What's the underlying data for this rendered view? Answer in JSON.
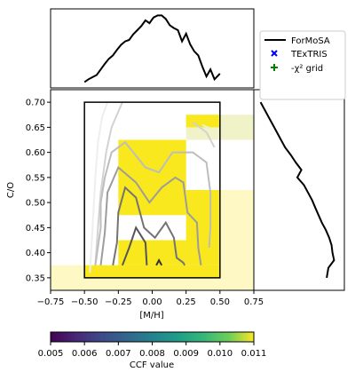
{
  "chart_data": {
    "type": "heatmap",
    "xlabel": "[M/H]",
    "ylabel": "C/O",
    "xlim": [
      -0.75,
      0.75
    ],
    "ylim": [
      0.325,
      0.725
    ],
    "x_ticks": [
      "−0.75",
      "−0.50",
      "−0.25",
      "0.00",
      "0.25",
      "0.50",
      "0.75"
    ],
    "y_ticks": [
      "0.35",
      "0.40",
      "0.45",
      "0.50",
      "0.55",
      "0.60",
      "0.65",
      "0.70"
    ],
    "x_tick_values": [
      -0.75,
      -0.5,
      -0.25,
      0.0,
      0.25,
      0.5,
      0.75
    ],
    "y_tick_values": [
      0.35,
      0.4,
      0.45,
      0.5,
      0.55,
      0.6,
      0.65,
      0.7
    ],
    "legend": {
      "position": "upper-right",
      "entries": [
        {
          "label": "ForMoSA",
          "marker": "line",
          "color": "#000000"
        },
        {
          "label": "TExTRIS",
          "marker": "x",
          "color": "#0000ff"
        },
        {
          "label": "-χ² grid",
          "marker": "+",
          "color": "#008000"
        }
      ]
    },
    "colorbar": {
      "label": "CCF value",
      "min": 0.005,
      "max": 0.011,
      "ticks": [
        "0.005",
        "0.006",
        "0.007",
        "0.008",
        "0.009",
        "0.010",
        "0.011"
      ],
      "colormap": "viridis"
    },
    "heatmap_cells": [
      {
        "x0": -0.75,
        "x1": 0.75,
        "y0": 0.325,
        "y1": 0.375,
        "color": "#fdf8c4"
      },
      {
        "x0": 0.5,
        "x1": 0.75,
        "y0": 0.375,
        "y1": 0.525,
        "color": "#fdf8c4"
      },
      {
        "x0": 0.25,
        "x1": 0.75,
        "y0": 0.625,
        "y1": 0.675,
        "color": "#f0f3c8"
      },
      {
        "x0": -0.5,
        "x1": 0.5,
        "y0": 0.35,
        "y1": 0.375,
        "color": "#f8e81d"
      },
      {
        "x0": -0.25,
        "x1": 0.5,
        "y0": 0.375,
        "y1": 0.425,
        "color": "#f8e81d"
      },
      {
        "x0": 0.25,
        "x1": 0.5,
        "y0": 0.425,
        "y1": 0.525,
        "color": "#f8e81d"
      },
      {
        "x0": -0.25,
        "x1": 0.25,
        "y0": 0.475,
        "y1": 0.625,
        "color": "#f8e81d"
      },
      {
        "x0": 0.25,
        "x1": 0.5,
        "y0": 0.65,
        "y1": 0.675,
        "color": "#f8e81d"
      }
    ],
    "grid_box": {
      "x": [
        -0.5,
        0.5
      ],
      "y": [
        0.35,
        0.7
      ]
    },
    "contours": [
      {
        "color": "#eeeeee",
        "points": [
          [
            -0.46,
            0.36
          ],
          [
            -0.44,
            0.45
          ],
          [
            -0.42,
            0.55
          ],
          [
            -0.4,
            0.62
          ],
          [
            -0.37,
            0.67
          ],
          [
            -0.33,
            0.7
          ]
        ]
      },
      {
        "color": "#d2d2d2",
        "points": [
          [
            -0.42,
            0.375
          ],
          [
            -0.4,
            0.45
          ],
          [
            -0.38,
            0.52
          ],
          [
            -0.34,
            0.6
          ],
          [
            -0.3,
            0.65
          ],
          [
            -0.22,
            0.7
          ]
        ]
      },
      {
        "color": "#d2d2d2",
        "points": [
          [
            0.3,
            0.66
          ],
          [
            0.4,
            0.64
          ],
          [
            0.46,
            0.61
          ]
        ]
      },
      {
        "color": "#bdbdbd",
        "points": [
          [
            -0.42,
            0.375
          ],
          [
            -0.38,
            0.45
          ],
          [
            -0.38,
            0.5
          ],
          [
            -0.35,
            0.55
          ],
          [
            -0.3,
            0.6
          ],
          [
            -0.2,
            0.62
          ],
          [
            -0.05,
            0.57
          ],
          [
            0.05,
            0.56
          ],
          [
            0.15,
            0.6
          ],
          [
            0.3,
            0.6
          ],
          [
            0.4,
            0.58
          ],
          [
            0.43,
            0.52
          ],
          [
            0.43,
            0.45
          ],
          [
            0.42,
            0.41
          ]
        ]
      },
      {
        "color": "#9c9c9c",
        "points": [
          [
            -0.38,
            0.375
          ],
          [
            -0.35,
            0.44
          ],
          [
            -0.33,
            0.52
          ],
          [
            -0.25,
            0.57
          ],
          [
            -0.12,
            0.54
          ],
          [
            -0.02,
            0.5
          ],
          [
            0.07,
            0.53
          ],
          [
            0.17,
            0.55
          ],
          [
            0.23,
            0.54
          ],
          [
            0.26,
            0.48
          ],
          [
            0.33,
            0.46
          ],
          [
            0.34,
            0.41
          ],
          [
            0.36,
            0.375
          ]
        ]
      },
      {
        "color": "#737373",
        "points": [
          [
            -0.29,
            0.375
          ],
          [
            -0.26,
            0.42
          ],
          [
            -0.25,
            0.48
          ],
          [
            -0.2,
            0.53
          ],
          [
            -0.12,
            0.51
          ],
          [
            -0.06,
            0.45
          ],
          [
            0.02,
            0.43
          ],
          [
            0.1,
            0.46
          ],
          [
            0.16,
            0.43
          ],
          [
            0.18,
            0.39
          ],
          [
            0.23,
            0.38
          ],
          [
            0.24,
            0.375
          ]
        ]
      },
      {
        "color": "#555555",
        "points": [
          [
            -0.22,
            0.375
          ],
          [
            -0.17,
            0.41
          ],
          [
            -0.12,
            0.45
          ],
          [
            -0.05,
            0.42
          ],
          [
            -0.04,
            0.375
          ]
        ]
      },
      {
        "color": "#333333",
        "points": [
          [
            0.03,
            0.375
          ],
          [
            0.05,
            0.385
          ],
          [
            0.07,
            0.375
          ]
        ]
      },
      {
        "color": "#eef3c6",
        "points": [
          [
            0.37,
            0.655
          ],
          [
            0.49,
            0.64
          ]
        ]
      }
    ],
    "top_marginal": {
      "series": "ForMoSA",
      "x": [
        -0.5,
        -0.47,
        -0.44,
        -0.41,
        -0.38,
        -0.35,
        -0.32,
        -0.29,
        -0.26,
        -0.23,
        -0.2,
        -0.17,
        -0.14,
        -0.11,
        -0.08,
        -0.05,
        -0.02,
        0.01,
        0.04,
        0.07,
        0.1,
        0.13,
        0.16,
        0.19,
        0.22,
        0.25,
        0.28,
        0.31,
        0.34,
        0.37,
        0.4,
        0.43,
        0.46,
        0.5
      ],
      "y": [
        0.02,
        0.06,
        0.09,
        0.12,
        0.2,
        0.28,
        0.35,
        0.4,
        0.48,
        0.55,
        0.6,
        0.62,
        0.7,
        0.76,
        0.82,
        0.9,
        0.86,
        0.94,
        0.97,
        0.97,
        0.92,
        0.83,
        0.79,
        0.76,
        0.6,
        0.71,
        0.56,
        0.46,
        0.4,
        0.24,
        0.1,
        0.2,
        0.06,
        0.14
      ]
    },
    "right_marginal": {
      "series": "ForMoSA",
      "y": [
        0.7,
        0.685,
        0.67,
        0.655,
        0.64,
        0.625,
        0.61,
        0.595,
        0.58,
        0.565,
        0.55,
        0.535,
        0.52,
        0.505,
        0.49,
        0.475,
        0.46,
        0.445,
        0.43,
        0.415,
        0.4,
        0.385,
        0.37,
        0.35
      ],
      "x": [
        0.05,
        0.1,
        0.15,
        0.2,
        0.25,
        0.3,
        0.35,
        0.42,
        0.48,
        0.55,
        0.5,
        0.58,
        0.63,
        0.68,
        0.72,
        0.76,
        0.8,
        0.85,
        0.89,
        0.92,
        0.93,
        0.95,
        0.88,
        0.86
      ]
    }
  }
}
